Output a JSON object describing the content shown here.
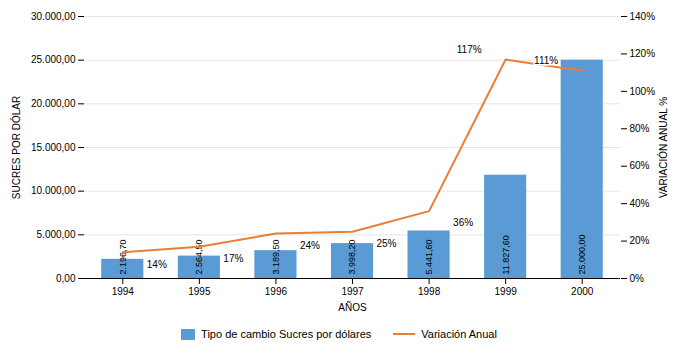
{
  "chart_data": {
    "type": "bar",
    "categories": [
      "1994",
      "1995",
      "1996",
      "1997",
      "1998",
      "1999",
      "2000"
    ],
    "xlabel": "AÑOS",
    "ylabel": "SUCRES POR DÓLAR",
    "y2label": "VARIACIÓN ANUAL %",
    "series": [
      {
        "name": "Tipo de cambio Sucres por dólares",
        "type": "bar",
        "color": "#5B9BD5",
        "values": [
          2196.7,
          2564.5,
          3189.5,
          3998.2,
          5441.6,
          11827.6,
          25000.0
        ],
        "value_labels": [
          "2.196,70",
          "2.564,50",
          "3.189,50",
          "3.998,20",
          "5.441,60",
          "11.827,60",
          "25.000,00"
        ]
      },
      {
        "name": "Variación Anual",
        "type": "line",
        "axis": "y2",
        "color": "#ED7D31",
        "values": [
          14,
          17,
          24,
          25,
          36,
          117,
          111
        ],
        "value_labels": [
          "14%",
          "17%",
          "24%",
          "25%",
          "36%",
          "117%",
          "111%"
        ]
      }
    ],
    "ylim": [
      0,
      30000
    ],
    "yticks": [
      {
        "value": 0,
        "label": "0,00"
      },
      {
        "value": 5000,
        "label": "5.000,00"
      },
      {
        "value": 10000,
        "label": "10.000,00"
      },
      {
        "value": 15000,
        "label": "15.000,00"
      },
      {
        "value": 20000,
        "label": "20.000,00"
      },
      {
        "value": 25000,
        "label": "25.000,00"
      },
      {
        "value": 30000,
        "label": "30.000,00"
      }
    ],
    "y2lim": [
      0,
      140
    ],
    "y2ticks": [
      {
        "value": 0,
        "label": "0%"
      },
      {
        "value": 20,
        "label": "20%"
      },
      {
        "value": 40,
        "label": "40%"
      },
      {
        "value": 60,
        "label": "60%"
      },
      {
        "value": 80,
        "label": "80%"
      },
      {
        "value": 100,
        "label": "100%"
      },
      {
        "value": 120,
        "label": "120%"
      },
      {
        "value": 140,
        "label": "140%"
      }
    ],
    "grid": true,
    "legend": "bottom",
    "data_labels": true
  }
}
